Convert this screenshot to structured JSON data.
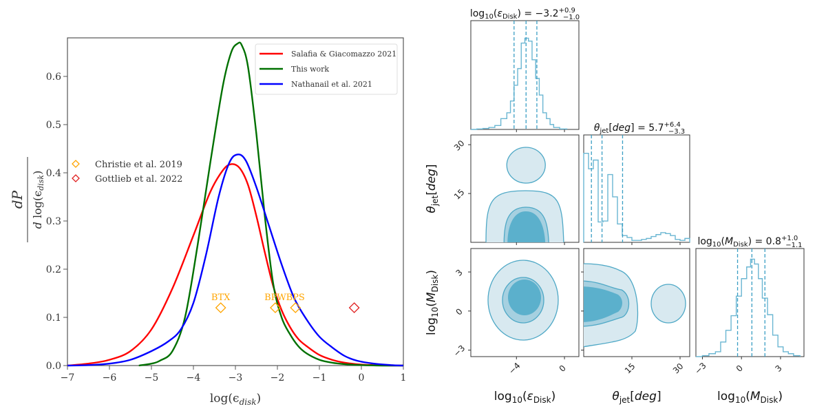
{
  "chart_data": [
    {
      "type": "line",
      "title": "",
      "xlabel": "log(ε_disk)",
      "ylabel": "dP / d log(ε_disk)",
      "xlim": [
        -7,
        1
      ],
      "ylim": [
        0,
        0.68
      ],
      "grid": false,
      "x_ticks": [
        "−7",
        "−6",
        "−5",
        "−4",
        "−3",
        "−2",
        "−1",
        "0",
        "1"
      ],
      "x_tick_values": [
        -7,
        -6,
        -5,
        -4,
        -3,
        -2,
        -1,
        0,
        1
      ],
      "y_ticks": [
        "0.0",
        "0.1",
        "0.2",
        "0.3",
        "0.4",
        "0.5",
        "0.6"
      ],
      "y_tick_values": [
        0.0,
        0.1,
        0.2,
        0.3,
        0.4,
        0.5,
        0.6
      ],
      "legend_placement": "top-right",
      "series": [
        {
          "name": "Salafia & Giacomazzo 2021",
          "color": "#ff0000",
          "x": [
            -7.0,
            -6.5,
            -6.0,
            -5.5,
            -5.0,
            -4.5,
            -4.0,
            -3.6,
            -3.3,
            -3.1,
            -2.9,
            -2.7,
            -2.5,
            -2.3,
            -2.1,
            -1.9,
            -1.7,
            -1.5,
            -1.3,
            -1.0,
            -0.7,
            -0.4,
            0.0,
            0.5,
            1.0
          ],
          "y": [
            0.0,
            0.004,
            0.012,
            0.03,
            0.075,
            0.16,
            0.27,
            0.36,
            0.405,
            0.418,
            0.41,
            0.375,
            0.31,
            0.235,
            0.165,
            0.115,
            0.08,
            0.055,
            0.04,
            0.022,
            0.012,
            0.006,
            0.002,
            0.0005,
            0.0
          ]
        },
        {
          "name": "This work",
          "color": "#007000",
          "x": [
            -5.3,
            -5.0,
            -4.8,
            -4.5,
            -4.2,
            -3.9,
            -3.6,
            -3.3,
            -3.1,
            -2.95,
            -2.85,
            -2.7,
            -2.5,
            -2.3,
            -2.1,
            -1.9,
            -1.7,
            -1.5,
            -1.3,
            -1.0,
            -0.7,
            -0.4,
            0.0,
            0.5,
            1.0
          ],
          "y": [
            0.0,
            0.004,
            0.01,
            0.03,
            0.1,
            0.25,
            0.42,
            0.58,
            0.65,
            0.668,
            0.665,
            0.62,
            0.48,
            0.31,
            0.17,
            0.1,
            0.065,
            0.04,
            0.025,
            0.012,
            0.006,
            0.003,
            0.001,
            0.0,
            0.0
          ]
        },
        {
          "name": "Nathanail et al. 2021",
          "color": "#0000ff",
          "x": [
            -7.0,
            -6.5,
            -6.0,
            -5.5,
            -5.0,
            -4.6,
            -4.3,
            -4.0,
            -3.7,
            -3.4,
            -3.15,
            -2.95,
            -2.75,
            -2.5,
            -2.2,
            -1.9,
            -1.6,
            -1.3,
            -1.0,
            -0.7,
            -0.4,
            -0.1,
            0.3,
            0.7,
            1.0
          ],
          "y": [
            0.0,
            0.001,
            0.004,
            0.012,
            0.03,
            0.05,
            0.075,
            0.13,
            0.23,
            0.35,
            0.42,
            0.438,
            0.425,
            0.37,
            0.29,
            0.21,
            0.14,
            0.095,
            0.06,
            0.038,
            0.02,
            0.01,
            0.004,
            0.001,
            0.0
          ]
        }
      ],
      "markers": [
        {
          "name": "Christie et al. 2019",
          "color": "#ffa500",
          "points": [
            {
              "label": "BTX",
              "x": -3.35,
              "y": 0.12
            },
            {
              "label": "BPW",
              "x": -2.05,
              "y": 0.12
            },
            {
              "label": "BPS",
              "x": -1.57,
              "y": 0.12
            }
          ]
        },
        {
          "name": "Gottlieb et al. 2022",
          "color": "#e02020",
          "points": [
            {
              "label": "",
              "x": -0.17,
              "y": 0.12
            }
          ]
        }
      ],
      "marker_legend_placement": "center-left"
    },
    {
      "type": "heatmap",
      "subtype": "corner",
      "color": "#4ea8c6",
      "parameters": [
        {
          "name": "log10(ε_Disk)",
          "median": -3.2,
          "plus": 0.9,
          "minus": 1.0,
          "title": "log₁₀(ε_Disk) = −3.2 +0.9 −1.0",
          "range": [
            -7.8,
            1.2
          ],
          "ticks": [
            -4,
            0
          ],
          "tick_labels": [
            "−4",
            "0"
          ],
          "quantiles": [
            -4.2,
            -3.2,
            -2.3
          ]
        },
        {
          "name": "θ_jet[deg]",
          "median": 5.7,
          "plus": 6.4,
          "minus": 3.3,
          "title": "θ_jet[deg] = 5.7 +6.4 −3.3",
          "range": [
            0,
            33
          ],
          "ticks": [
            15,
            30
          ],
          "tick_labels": [
            "15",
            "30"
          ],
          "quantiles": [
            2.4,
            5.7,
            12.1
          ]
        },
        {
          "name": "log10(M_Disk)",
          "median": 0.8,
          "plus": 1.0,
          "minus": 1.1,
          "title": "log₁₀(M_Disk) = 0.8 +1.0 −1.1",
          "range": [
            -3.5,
            4.8
          ],
          "ticks": [
            -3,
            0,
            3
          ],
          "tick_labels": [
            "−3",
            "0",
            "3"
          ],
          "quantiles": [
            -0.3,
            0.8,
            1.8
          ]
        }
      ],
      "histograms": [
        {
          "param": "log10(ε_Disk)",
          "bins": [
            -7.8,
            -7.3,
            -6.8,
            -6.3,
            -5.8,
            -5.3,
            -4.8,
            -4.5,
            -4.2,
            -3.9,
            -3.6,
            -3.3,
            -3.0,
            -2.7,
            -2.4,
            -2.1,
            -1.8,
            -1.5,
            -1.2,
            -0.9,
            -0.4,
            0.2
          ],
          "counts": [
            0.0,
            0.005,
            0.01,
            0.02,
            0.04,
            0.11,
            0.17,
            0.29,
            0.45,
            0.62,
            0.88,
            0.93,
            0.9,
            0.71,
            0.52,
            0.35,
            0.17,
            0.11,
            0.05,
            0.02,
            0.005
          ]
        },
        {
          "param": "θ_jet[deg]",
          "bins": [
            0,
            1.5,
            3,
            4.5,
            6,
            7.5,
            9,
            10.5,
            12,
            13.5,
            15,
            16.5,
            18,
            19.5,
            21,
            22.5,
            24,
            25.5,
            27,
            28.5,
            30,
            31.5,
            33
          ],
          "counts": [
            0.92,
            0.76,
            0.85,
            0.21,
            0.22,
            0.7,
            0.47,
            0.19,
            0.07,
            0.05,
            0.02,
            0.02,
            0.03,
            0.04,
            0.06,
            0.08,
            0.1,
            0.09,
            0.07,
            0.03,
            0.02,
            0.04
          ]
        },
        {
          "param": "log10(M_Disk)",
          "bins": [
            -3.5,
            -3,
            -2.5,
            -2,
            -1.6,
            -1.2,
            -0.8,
            -0.4,
            0,
            0.4,
            0.7,
            1.0,
            1.3,
            1.6,
            2.0,
            2.4,
            2.8,
            3.2,
            3.6,
            4.0,
            4.5
          ],
          "counts": [
            0.0,
            0.01,
            0.03,
            0.05,
            0.15,
            0.27,
            0.42,
            0.62,
            0.8,
            0.92,
            1.0,
            0.95,
            0.8,
            0.6,
            0.43,
            0.22,
            0.1,
            0.05,
            0.03,
            0.01
          ]
        }
      ],
      "contours": [
        {
          "x": "log10(ε_Disk)",
          "y": "θ_jet[deg]",
          "description": "bimodal: lobe at θ≈4 (ε≈−3.2) and island at θ≈26"
        },
        {
          "x": "log10(ε_Disk)",
          "y": "log10(M_Disk)",
          "description": "circular blob centered (−3.2, 0.9)"
        },
        {
          "x": "θ_jet[deg]",
          "y": "log10(M_Disk)",
          "description": "lobe at low θ plus island at θ≈25"
        }
      ],
      "axis_labels": [
        "log₁₀(ε_Disk)",
        "θ_jet[deg]",
        "log₁₀(M_Disk)"
      ]
    }
  ]
}
